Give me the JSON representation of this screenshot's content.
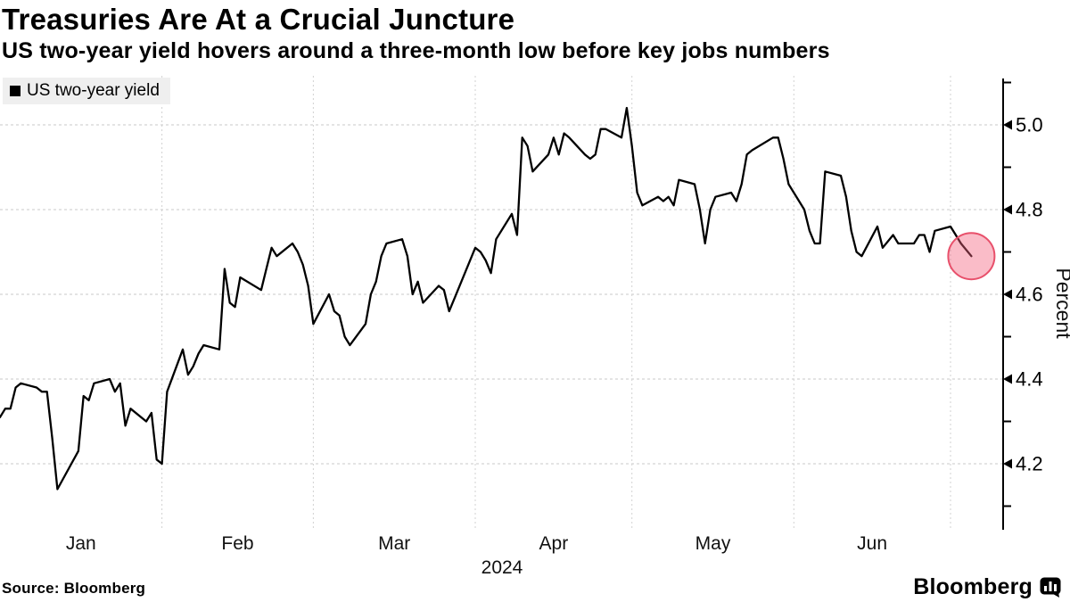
{
  "header": {
    "title": "Treasuries Are At a Crucial Juncture",
    "subtitle": "US two-year yield hovers around a three-month low before key jobs numbers"
  },
  "legend": {
    "label": "US two-year yield",
    "swatch_color": "#000000"
  },
  "chart_data": {
    "type": "line",
    "title": "Treasuries Are At a Crucial Juncture",
    "subtitle": "US two-year yield hovers around a three-month low before key jobs numbers",
    "ylabel": "Percent",
    "year_label": "2024",
    "month_labels": [
      "Jan",
      "Feb",
      "Mar",
      "Apr",
      "May",
      "Jun"
    ],
    "ylim": [
      4.04,
      5.12
    ],
    "yticks_labeled": [
      4.2,
      4.4,
      4.6,
      4.8,
      5.0
    ],
    "yticks_minor": [
      4.1,
      4.3,
      4.5,
      4.7,
      4.9,
      5.1
    ],
    "grid": {
      "horizontal": true,
      "vertical_month_starts": true,
      "style": "dashed"
    },
    "legend_position": "top-left",
    "line_color": "#000000",
    "highlight_last_point": {
      "fill": "rgba(242,96,125,0.42)",
      "stroke": "#e8506b",
      "note": "circle marker around latest value"
    },
    "series": [
      {
        "name": "US two-year yield",
        "points": [
          [
            "1/1",
            4.31
          ],
          [
            "1/2",
            4.33
          ],
          [
            "1/3",
            4.33
          ],
          [
            "1/4",
            4.38
          ],
          [
            "1/5",
            4.39
          ],
          [
            "1/8",
            4.38
          ],
          [
            "1/9",
            4.37
          ],
          [
            "1/10",
            4.37
          ],
          [
            "1/11",
            4.26
          ],
          [
            "1/12",
            4.14
          ],
          [
            "1/16",
            4.23
          ],
          [
            "1/17",
            4.36
          ],
          [
            "1/18",
            4.35
          ],
          [
            "1/19",
            4.39
          ],
          [
            "1/22",
            4.4
          ],
          [
            "1/23",
            4.37
          ],
          [
            "1/24",
            4.39
          ],
          [
            "1/25",
            4.29
          ],
          [
            "1/26",
            4.33
          ],
          [
            "1/29",
            4.3
          ],
          [
            "1/30",
            4.32
          ],
          [
            "1/31",
            4.21
          ],
          [
            "2/1",
            4.2
          ],
          [
            "2/2",
            4.37
          ],
          [
            "2/5",
            4.47
          ],
          [
            "2/6",
            4.41
          ],
          [
            "2/7",
            4.43
          ],
          [
            "2/8",
            4.46
          ],
          [
            "2/9",
            4.48
          ],
          [
            "2/12",
            4.47
          ],
          [
            "2/13",
            4.66
          ],
          [
            "2/14",
            4.58
          ],
          [
            "2/15",
            4.57
          ],
          [
            "2/16",
            4.64
          ],
          [
            "2/20",
            4.61
          ],
          [
            "2/21",
            4.66
          ],
          [
            "2/22",
            4.71
          ],
          [
            "2/23",
            4.69
          ],
          [
            "2/26",
            4.72
          ],
          [
            "2/27",
            4.7
          ],
          [
            "2/28",
            4.67
          ],
          [
            "2/29",
            4.62
          ],
          [
            "3/1",
            4.53
          ],
          [
            "3/4",
            4.6
          ],
          [
            "3/5",
            4.56
          ],
          [
            "3/6",
            4.55
          ],
          [
            "3/7",
            4.5
          ],
          [
            "3/8",
            4.48
          ],
          [
            "3/11",
            4.53
          ],
          [
            "3/12",
            4.6
          ],
          [
            "3/13",
            4.63
          ],
          [
            "3/14",
            4.69
          ],
          [
            "3/15",
            4.72
          ],
          [
            "3/18",
            4.73
          ],
          [
            "3/19",
            4.69
          ],
          [
            "3/20",
            4.6
          ],
          [
            "3/21",
            4.63
          ],
          [
            "3/22",
            4.58
          ],
          [
            "3/25",
            4.62
          ],
          [
            "3/26",
            4.61
          ],
          [
            "3/27",
            4.56
          ],
          [
            "3/28",
            4.59
          ],
          [
            "4/1",
            4.71
          ],
          [
            "4/2",
            4.7
          ],
          [
            "4/3",
            4.68
          ],
          [
            "4/4",
            4.65
          ],
          [
            "4/5",
            4.73
          ],
          [
            "4/8",
            4.79
          ],
          [
            "4/9",
            4.74
          ],
          [
            "4/10",
            4.97
          ],
          [
            "4/11",
            4.95
          ],
          [
            "4/12",
            4.89
          ],
          [
            "4/15",
            4.93
          ],
          [
            "4/16",
            4.97
          ],
          [
            "4/17",
            4.93
          ],
          [
            "4/18",
            4.98
          ],
          [
            "4/19",
            4.97
          ],
          [
            "4/22",
            4.93
          ],
          [
            "4/23",
            4.92
          ],
          [
            "4/24",
            4.93
          ],
          [
            "4/25",
            4.99
          ],
          [
            "4/26",
            4.99
          ],
          [
            "4/29",
            4.97
          ],
          [
            "4/30",
            5.04
          ],
          [
            "5/1",
            4.95
          ],
          [
            "5/2",
            4.84
          ],
          [
            "5/3",
            4.81
          ],
          [
            "5/6",
            4.83
          ],
          [
            "5/7",
            4.82
          ],
          [
            "5/8",
            4.83
          ],
          [
            "5/9",
            4.81
          ],
          [
            "5/10",
            4.87
          ],
          [
            "5/13",
            4.86
          ],
          [
            "5/14",
            4.8
          ],
          [
            "5/15",
            4.72
          ],
          [
            "5/16",
            4.8
          ],
          [
            "5/17",
            4.83
          ],
          [
            "5/20",
            4.84
          ],
          [
            "5/21",
            4.82
          ],
          [
            "5/22",
            4.86
          ],
          [
            "5/23",
            4.93
          ],
          [
            "5/24",
            4.94
          ],
          [
            "5/28",
            4.97
          ],
          [
            "5/29",
            4.97
          ],
          [
            "5/30",
            4.92
          ],
          [
            "5/31",
            4.86
          ],
          [
            "6/3",
            4.8
          ],
          [
            "6/4",
            4.75
          ],
          [
            "6/5",
            4.72
          ],
          [
            "6/6",
            4.72
          ],
          [
            "6/7",
            4.89
          ],
          [
            "6/10",
            4.88
          ],
          [
            "6/11",
            4.83
          ],
          [
            "6/12",
            4.75
          ],
          [
            "6/13",
            4.7
          ],
          [
            "6/14",
            4.69
          ],
          [
            "6/17",
            4.76
          ],
          [
            "6/18",
            4.71
          ],
          [
            "6/20",
            4.74
          ],
          [
            "6/21",
            4.72
          ],
          [
            "6/24",
            4.72
          ],
          [
            "6/25",
            4.74
          ],
          [
            "6/26",
            4.74
          ],
          [
            "6/27",
            4.7
          ],
          [
            "6/28",
            4.75
          ],
          [
            "7/1",
            4.76
          ],
          [
            "7/2",
            4.74
          ],
          [
            "7/3",
            4.72
          ],
          [
            "7/5",
            4.69
          ]
        ]
      }
    ]
  },
  "footer": {
    "source": "Source: Bloomberg",
    "brand": "Bloomberg"
  }
}
